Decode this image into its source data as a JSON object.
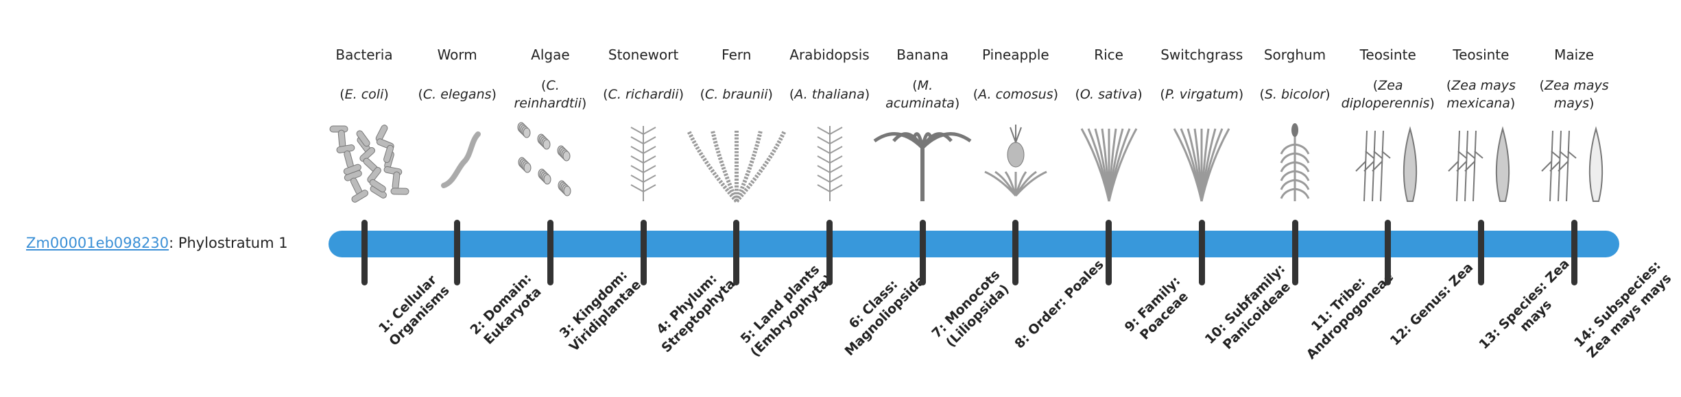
{
  "gene": {
    "id": "Zm00001eb098230",
    "suffix": ": Phylostratum 1"
  },
  "colors": {
    "bar": "#3898db",
    "tick": "#333333",
    "link": "#3a8fd6"
  },
  "organisms": [
    {
      "common": "Bacteria",
      "sci": "E. coli",
      "icon": "bacteria-illustration"
    },
    {
      "common": "Worm",
      "sci": "C. elegans",
      "icon": "worm-illustration"
    },
    {
      "common": "Algae",
      "sci": "C. reinhardtii",
      "icon": "algae-illustration"
    },
    {
      "common": "Stonewort",
      "sci": "C. richardii",
      "icon": "stonewort-illustration"
    },
    {
      "common": "Fern",
      "sci": "C. braunii",
      "icon": "fern-illustration"
    },
    {
      "common": "Arabidopsis",
      "sci": "A. thaliana",
      "icon": "arabidopsis-illustration"
    },
    {
      "common": "Banana",
      "sci": "M. acuminata",
      "icon": "banana-illustration"
    },
    {
      "common": "Pineapple",
      "sci": "A. comosus",
      "icon": "pineapple-illustration"
    },
    {
      "common": "Rice",
      "sci": "O. sativa",
      "icon": "rice-illustration"
    },
    {
      "common": "Switchgrass",
      "sci": "P. virgatum",
      "icon": "switchgrass-illustration"
    },
    {
      "common": "Sorghum",
      "sci": "S. bicolor",
      "icon": "sorghum-illustration"
    },
    {
      "common": "Teosinte",
      "sci": "Zea diploperennis",
      "icon": "teosinte-illustration"
    },
    {
      "common": "Teosinte",
      "sci": "Zea mays mexicana",
      "icon": "teosinte-illustration"
    },
    {
      "common": "Maize",
      "sci": "Zea mays mays",
      "icon": "maize-illustration"
    }
  ],
  "strata": [
    "1: Cellular Organisms",
    "2: Domain: Eukaryota",
    "3: Kingdom: Viridiplantae",
    "4: Phylum: Streptophyta",
    "5: Land plants (Embryophyta)",
    "6: Class: Magnoliopsida",
    "7: Monocots (Liliopsida)",
    "8: Order: Poales",
    "9: Family: Poaceae",
    "10: Subfamily: Panicoideae",
    "11: Tribe: Andropogoneae",
    "12: Genus: Zea",
    "13: Species: Zea mays",
    "14: Subspecies: Zea mays mays"
  ]
}
